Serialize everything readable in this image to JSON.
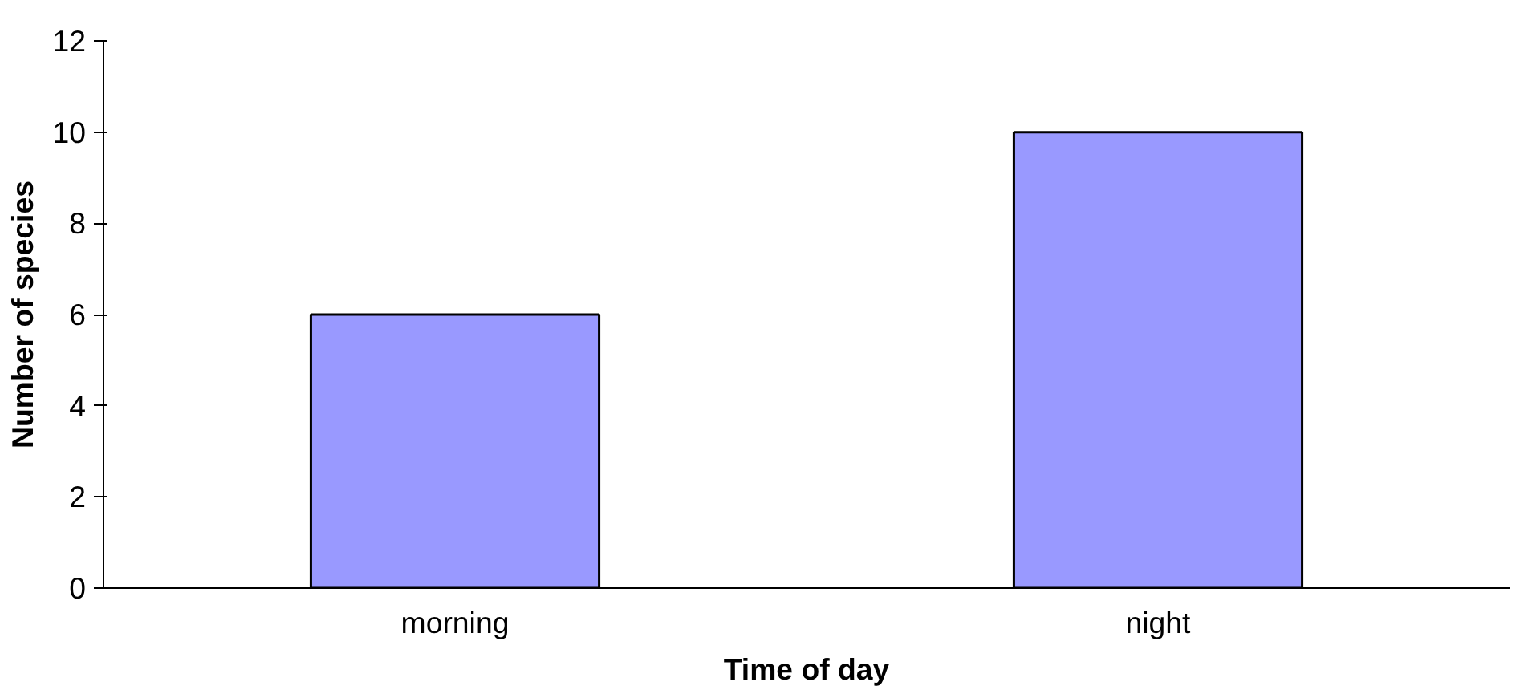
{
  "chart_data": {
    "type": "bar",
    "xlabel": "Time of day",
    "ylabel": "Number of species",
    "categories": [
      "morning",
      "night"
    ],
    "values": [
      6,
      10
    ],
    "color": "#9999ff",
    "ylim": [
      0,
      12
    ],
    "yticks": [
      0,
      2,
      4,
      6,
      8,
      10,
      12
    ],
    "grid": false
  }
}
